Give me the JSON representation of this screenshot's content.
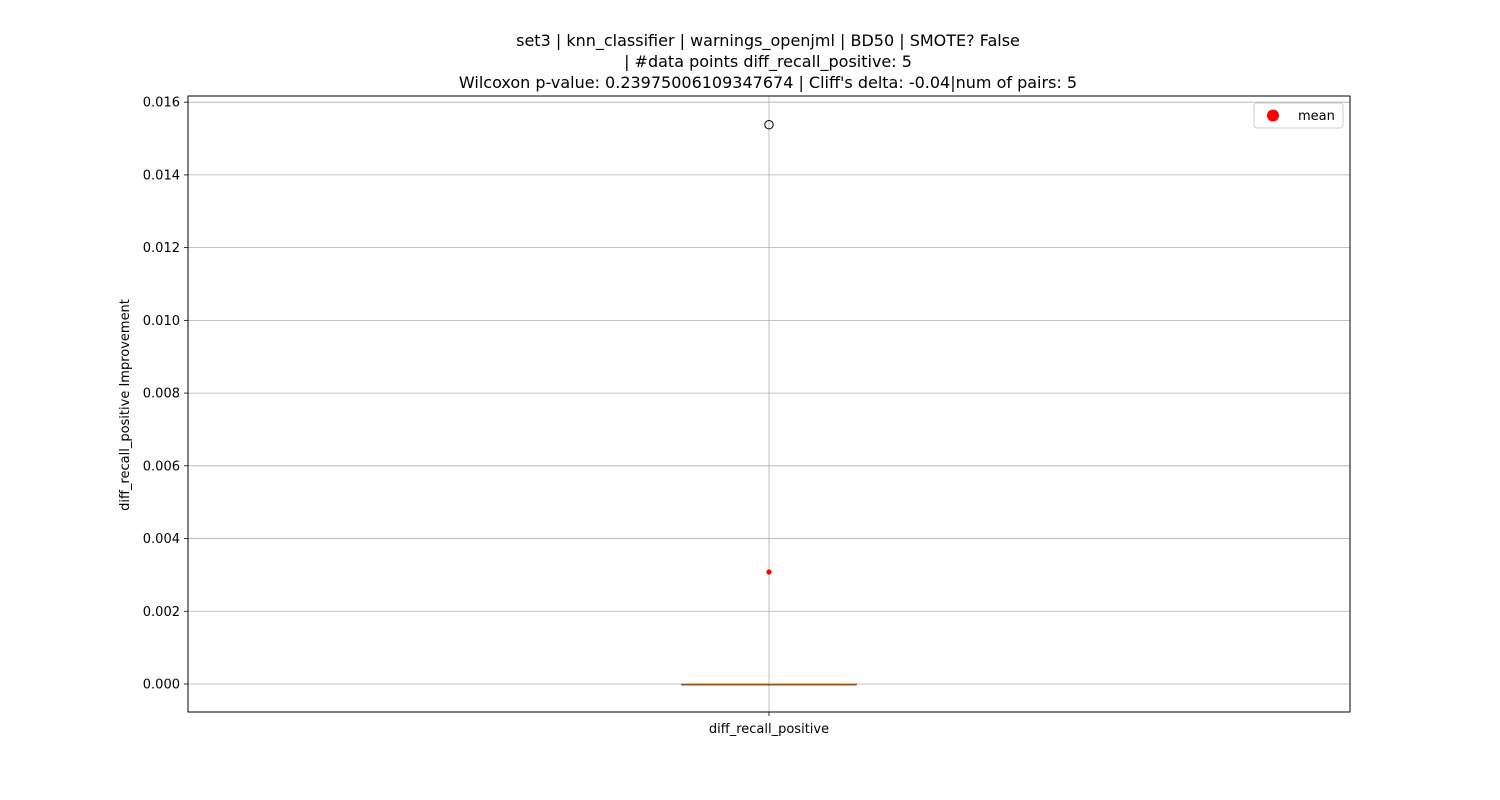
{
  "chart_data": {
    "type": "box",
    "title_lines": [
      "set3 | knn_classifier | warnings_openjml | BD50 | SMOTE? False",
      "| #data points diff_recall_positive: 5",
      "Wilcoxon p-value: 0.23975006109347674 | Cliff's delta: -0.04|num of pairs: 5"
    ],
    "xlabel": "",
    "ylabel": "diff_recall_positive Improvement",
    "categories": [
      "diff_recall_positive"
    ],
    "ylim": [
      -0.00077,
      0.01617
    ],
    "yticks": [
      0.0,
      0.002,
      0.004,
      0.006,
      0.008,
      0.01,
      0.012,
      0.014,
      0.016
    ],
    "ytick_labels": [
      "0.000",
      "0.002",
      "0.004",
      "0.006",
      "0.008",
      "0.010",
      "0.012",
      "0.014",
      "0.016"
    ],
    "grid": true,
    "legend": {
      "placement": "upper-right",
      "entries": [
        "mean"
      ]
    },
    "series": [
      {
        "category": "diff_recall_positive",
        "q1": 0.0,
        "median": 0.0,
        "q3": 0.0,
        "whisker_low": 0.0,
        "whisker_high": 0.0,
        "outliers": [
          0.01538
        ],
        "mean": 0.00308
      }
    ],
    "colors": {
      "box": "#000000",
      "median": "#ff7f0e",
      "mean": "#ff0000",
      "grid": "#b0b0b0",
      "outlier": "#000000"
    }
  }
}
